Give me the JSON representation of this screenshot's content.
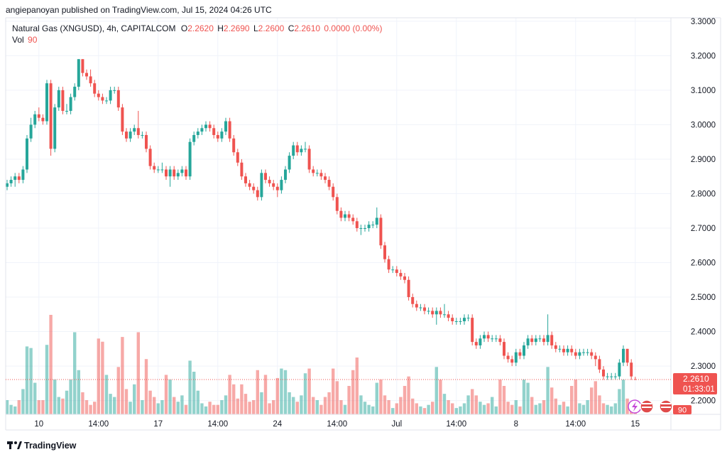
{
  "chart_data": {
    "type": "candlestick",
    "header": "angiepanoyan published on TradingView.com, Jul 15, 2024 04:26 UTC",
    "title": "Natural Gas (XNGUSD), 4h, CAPITALCOM",
    "ohlc_legend": [
      {
        "key": "O",
        "value": "2.2620"
      },
      {
        "key": "H",
        "value": "2.2690"
      },
      {
        "key": "L",
        "value": "2.2600"
      },
      {
        "key": "C",
        "value": "2.2610"
      }
    ],
    "change": "0.0000 (0.00%)",
    "volume_label": "Vol",
    "volume_legend": "90",
    "last_price_label": "2.2610",
    "countdown": "01:33:01",
    "volume_tag": "90",
    "footer": "TradingView",
    "up_color": "#26a69a",
    "down_color": "#ef5350",
    "grid": true,
    "ylim": [
      2.16,
      3.31
    ],
    "yticks": [
      {
        "value": 2.2,
        "label": "2.2000"
      },
      {
        "value": 2.3,
        "label": "2.3000"
      },
      {
        "value": 2.4,
        "label": "2.4000"
      },
      {
        "value": 2.5,
        "label": "2.5000"
      },
      {
        "value": 2.6,
        "label": "2.6000"
      },
      {
        "value": 2.7,
        "label": "2.7000"
      },
      {
        "value": 2.8,
        "label": "2.8000"
      },
      {
        "value": 2.9,
        "label": "2.9000"
      },
      {
        "value": 3.0,
        "label": "3.0000"
      },
      {
        "value": 3.1,
        "label": "3.1000"
      },
      {
        "value": 3.2,
        "label": "3.2000"
      },
      {
        "value": 3.3,
        "label": "3.3000"
      }
    ],
    "categories": [
      null,
      null,
      null,
      null,
      null,
      null,
      null,
      null,
      "10",
      null,
      null,
      null,
      null,
      null,
      null,
      null,
      null,
      null,
      null,
      null,
      null,
      null,
      null,
      "14:00",
      null,
      null,
      null,
      null,
      null,
      null,
      null,
      null,
      null,
      null,
      null,
      null,
      null,
      null,
      "17",
      null,
      null,
      null,
      null,
      null,
      null,
      null,
      null,
      null,
      null,
      null,
      null,
      null,
      null,
      "14:00",
      null,
      null,
      null,
      null,
      null,
      null,
      null,
      null,
      null,
      null,
      null,
      null,
      null,
      null,
      "24",
      null,
      null,
      null,
      null,
      null,
      null,
      null,
      null,
      null,
      null,
      null,
      null,
      null,
      null,
      "14:00",
      null,
      null,
      null,
      null,
      null,
      null,
      null,
      null,
      null,
      null,
      null,
      null,
      null,
      null,
      "Jul",
      null,
      null,
      null,
      null,
      null,
      null,
      null,
      null,
      null,
      null,
      null,
      null,
      null,
      null,
      "14:00",
      null,
      null,
      null,
      null,
      null,
      null,
      null,
      null,
      null,
      null,
      null,
      null,
      null,
      null,
      "8",
      null,
      null,
      null,
      null,
      null,
      null,
      null,
      null,
      null,
      null,
      null,
      null,
      null,
      null,
      "14:00",
      null,
      null,
      null,
      null,
      null,
      null,
      null,
      null,
      null,
      null,
      null,
      null,
      null,
      null,
      "15"
    ],
    "open": [
      2.82,
      2.83,
      2.84,
      2.85,
      2.84,
      2.87,
      2.96,
      3.0,
      3.03,
      3.02,
      3.01,
      3.12,
      2.93,
      3.05,
      3.1,
      3.04,
      3.04,
      3.08,
      3.11,
      3.19,
      3.15,
      3.14,
      3.12,
      3.09,
      3.08,
      3.07,
      3.07,
      3.1,
      3.1,
      3.05,
      2.98,
      2.96,
      2.98,
      2.99,
      2.97,
      2.97,
      2.93,
      2.88,
      2.87,
      2.87,
      2.87,
      2.85,
      2.87,
      2.85,
      2.86,
      2.87,
      2.85,
      2.95,
      2.97,
      2.98,
      2.99,
      3.0,
      2.99,
      2.97,
      2.96,
      2.98,
      3.01,
      2.96,
      2.92,
      2.89,
      2.85,
      2.83,
      2.82,
      2.81,
      2.79,
      2.86,
      2.84,
      2.83,
      2.82,
      2.81,
      2.84,
      2.87,
      2.91,
      2.94,
      2.92,
      2.93,
      2.93,
      2.87,
      2.86,
      2.86,
      2.85,
      2.84,
      2.82,
      2.79,
      2.75,
      2.73,
      2.74,
      2.73,
      2.72,
      2.7,
      2.7,
      2.7,
      2.71,
      2.71,
      2.73,
      2.65,
      2.61,
      2.58,
      2.58,
      2.57,
      2.56,
      2.55,
      2.5,
      2.48,
      2.47,
      2.47,
      2.46,
      2.46,
      2.45,
      2.46,
      2.45,
      2.45,
      2.44,
      2.43,
      2.43,
      2.43,
      2.44,
      2.44,
      2.37,
      2.36,
      2.38,
      2.39,
      2.38,
      2.38,
      2.38,
      2.37,
      2.33,
      2.32,
      2.31,
      2.34,
      2.33,
      2.36,
      2.38,
      2.37,
      2.38,
      2.38,
      2.37,
      2.39,
      2.36,
      2.35,
      2.35,
      2.34,
      2.35,
      2.34,
      2.33,
      2.34,
      2.34,
      2.34,
      2.33,
      2.32,
      2.29,
      2.27,
      2.27,
      2.27,
      2.27,
      2.31,
      2.35,
      2.31,
      2.262
    ],
    "high": [
      2.84,
      2.85,
      2.86,
      2.86,
      2.88,
      2.97,
      3.02,
      3.04,
      3.05,
      3.03,
      3.13,
      3.13,
      3.06,
      3.11,
      3.11,
      3.06,
      3.09,
      3.12,
      3.19,
      3.19,
      3.16,
      3.16,
      3.13,
      3.1,
      3.09,
      3.08,
      3.11,
      3.11,
      3.11,
      3.06,
      2.99,
      2.99,
      3.0,
      3.04,
      2.98,
      2.98,
      2.94,
      2.89,
      2.88,
      2.89,
      2.88,
      2.88,
      2.88,
      2.87,
      2.88,
      2.88,
      2.96,
      2.98,
      2.99,
      3.0,
      3.01,
      3.01,
      3.0,
      2.98,
      2.99,
      3.02,
      3.02,
      2.97,
      2.93,
      2.9,
      2.86,
      2.84,
      2.83,
      2.82,
      2.87,
      2.87,
      2.85,
      2.84,
      2.83,
      2.85,
      2.88,
      2.92,
      2.95,
      2.95,
      2.94,
      2.95,
      2.94,
      2.88,
      2.87,
      2.87,
      2.86,
      2.85,
      2.83,
      2.8,
      2.76,
      2.75,
      2.75,
      2.74,
      2.73,
      2.71,
      2.71,
      2.72,
      2.72,
      2.76,
      2.74,
      2.66,
      2.62,
      2.59,
      2.59,
      2.58,
      2.57,
      2.56,
      2.51,
      2.49,
      2.48,
      2.48,
      2.47,
      2.47,
      2.47,
      2.47,
      2.48,
      2.46,
      2.45,
      2.44,
      2.44,
      2.45,
      2.45,
      2.45,
      2.38,
      2.39,
      2.4,
      2.4,
      2.39,
      2.39,
      2.39,
      2.38,
      2.34,
      2.33,
      2.35,
      2.35,
      2.37,
      2.39,
      2.39,
      2.39,
      2.39,
      2.39,
      2.45,
      2.4,
      2.37,
      2.36,
      2.36,
      2.36,
      2.36,
      2.35,
      2.35,
      2.35,
      2.35,
      2.35,
      2.34,
      2.33,
      2.3,
      2.28,
      2.28,
      2.28,
      2.32,
      2.36,
      2.35,
      2.32,
      2.269
    ],
    "low": [
      2.81,
      2.82,
      2.82,
      2.83,
      2.83,
      2.86,
      2.95,
      2.99,
      3.01,
      3.0,
      3.0,
      2.91,
      2.92,
      3.04,
      3.03,
      3.03,
      3.03,
      3.07,
      3.1,
      3.14,
      3.13,
      3.11,
      3.08,
      3.07,
      3.06,
      3.06,
      3.06,
      3.09,
      3.04,
      2.97,
      2.95,
      2.95,
      2.97,
      2.96,
      2.96,
      2.92,
      2.87,
      2.86,
      2.86,
      2.86,
      2.84,
      2.82,
      2.84,
      2.84,
      2.85,
      2.84,
      2.84,
      2.94,
      2.96,
      2.97,
      2.98,
      2.98,
      2.96,
      2.95,
      2.95,
      2.97,
      2.95,
      2.91,
      2.88,
      2.84,
      2.82,
      2.81,
      2.8,
      2.78,
      2.78,
      2.83,
      2.82,
      2.81,
      2.79,
      2.8,
      2.83,
      2.86,
      2.9,
      2.91,
      2.91,
      2.92,
      2.86,
      2.85,
      2.85,
      2.84,
      2.83,
      2.81,
      2.78,
      2.74,
      2.72,
      2.72,
      2.72,
      2.71,
      2.69,
      2.68,
      2.69,
      2.69,
      2.7,
      2.7,
      2.64,
      2.6,
      2.57,
      2.57,
      2.56,
      2.55,
      2.54,
      2.49,
      2.47,
      2.46,
      2.46,
      2.45,
      2.45,
      2.44,
      2.42,
      2.44,
      2.44,
      2.43,
      2.42,
      2.42,
      2.42,
      2.42,
      2.43,
      2.36,
      2.35,
      2.35,
      2.37,
      2.37,
      2.37,
      2.37,
      2.36,
      2.32,
      2.31,
      2.3,
      2.3,
      2.32,
      2.32,
      2.35,
      2.36,
      2.36,
      2.37,
      2.36,
      2.36,
      2.35,
      2.34,
      2.34,
      2.33,
      2.33,
      2.33,
      2.32,
      2.32,
      2.33,
      2.33,
      2.32,
      2.3,
      2.28,
      2.26,
      2.26,
      2.26,
      2.26,
      2.26,
      2.3,
      2.3,
      2.26,
      2.26
    ],
    "close": [
      2.83,
      2.84,
      2.85,
      2.84,
      2.87,
      2.96,
      3.0,
      3.03,
      3.02,
      3.01,
      3.12,
      2.93,
      3.05,
      3.1,
      3.04,
      3.04,
      3.08,
      3.11,
      3.19,
      3.15,
      3.14,
      3.12,
      3.09,
      3.08,
      3.07,
      3.07,
      3.1,
      3.1,
      3.05,
      2.98,
      2.96,
      2.98,
      2.99,
      2.97,
      2.97,
      2.93,
      2.88,
      2.87,
      2.87,
      2.87,
      2.85,
      2.87,
      2.85,
      2.86,
      2.87,
      2.85,
      2.95,
      2.97,
      2.98,
      2.99,
      3.0,
      2.99,
      2.97,
      2.96,
      2.98,
      3.01,
      2.96,
      2.92,
      2.89,
      2.85,
      2.83,
      2.82,
      2.81,
      2.79,
      2.86,
      2.84,
      2.83,
      2.82,
      2.81,
      2.84,
      2.87,
      2.91,
      2.94,
      2.92,
      2.93,
      2.93,
      2.87,
      2.86,
      2.86,
      2.85,
      2.84,
      2.82,
      2.79,
      2.75,
      2.73,
      2.74,
      2.73,
      2.72,
      2.7,
      2.7,
      2.7,
      2.71,
      2.71,
      2.73,
      2.65,
      2.61,
      2.58,
      2.58,
      2.57,
      2.56,
      2.55,
      2.5,
      2.48,
      2.47,
      2.47,
      2.46,
      2.46,
      2.45,
      2.46,
      2.45,
      2.45,
      2.44,
      2.43,
      2.43,
      2.43,
      2.44,
      2.44,
      2.37,
      2.36,
      2.38,
      2.39,
      2.38,
      2.38,
      2.38,
      2.37,
      2.33,
      2.32,
      2.31,
      2.34,
      2.33,
      2.36,
      2.38,
      2.37,
      2.38,
      2.38,
      2.37,
      2.39,
      2.36,
      2.35,
      2.35,
      2.34,
      2.35,
      2.34,
      2.33,
      2.34,
      2.34,
      2.34,
      2.33,
      2.32,
      2.29,
      2.27,
      2.27,
      2.27,
      2.27,
      2.31,
      2.35,
      2.31,
      2.27,
      2.261
    ],
    "volume": [
      90,
      60,
      50,
      90,
      160,
      430,
      420,
      200,
      90,
      90,
      440,
      630,
      220,
      110,
      100,
      150,
      220,
      520,
      280,
      140,
      90,
      60,
      80,
      480,
      460,
      250,
      130,
      110,
      300,
      490,
      160,
      80,
      190,
      520,
      90,
      350,
      150,
      110,
      70,
      90,
      250,
      220,
      110,
      80,
      120,
      60,
      340,
      270,
      150,
      70,
      50,
      80,
      60,
      60,
      90,
      120,
      250,
      190,
      100,
      190,
      130,
      80,
      90,
      280,
      140,
      250,
      70,
      90,
      230,
      290,
      280,
      140,
      110,
      80,
      120,
      260,
      290,
      110,
      90,
      60,
      110,
      140,
      290,
      210,
      90,
      60,
      180,
      280,
      360,
      120,
      80,
      60,
      50,
      200,
      220,
      120,
      90,
      40,
      70,
      110,
      180,
      240,
      100,
      70,
      50,
      40,
      60,
      80,
      300,
      220,
      130,
      90,
      70,
      40,
      50,
      70,
      120,
      160,
      120,
      80,
      60,
      70,
      110,
      50,
      220,
      180,
      80,
      60,
      90,
      50,
      220,
      200,
      110,
      60,
      70,
      90,
      300,
      170,
      100,
      60,
      80,
      50,
      180,
      220,
      70,
      60,
      90,
      170,
      210,
      120,
      70,
      60,
      50,
      70,
      160,
      220,
      100,
      50,
      90
    ]
  }
}
